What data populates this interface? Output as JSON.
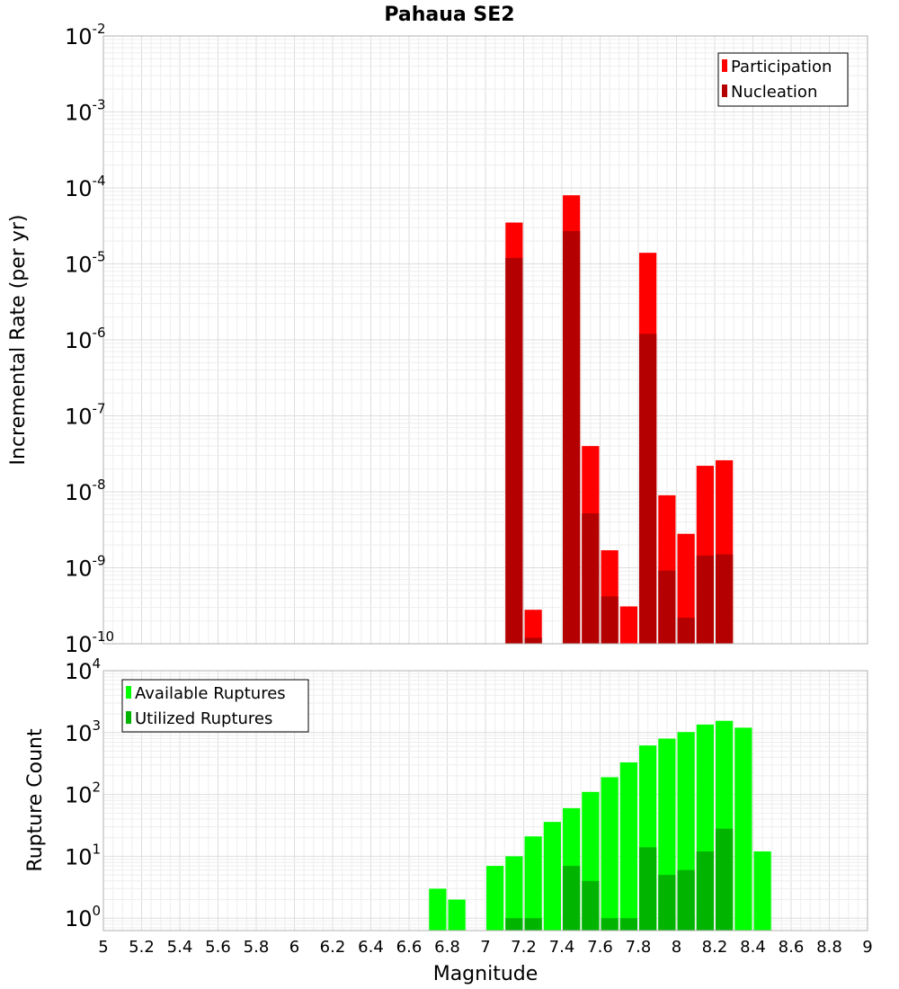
{
  "chart_data": [
    {
      "type": "bar",
      "title": "Pahaua SE2",
      "xlabel": "",
      "ylabel": "Incremental Rate (per yr)",
      "yscale": "log",
      "ylim_exp": [
        -10,
        -2
      ],
      "xlim": [
        5,
        9
      ],
      "legend_position": "top-right",
      "legend": [
        "Participation",
        "Nucleation"
      ],
      "colors": {
        "Participation": "#ff0000",
        "Nucleation": "#b40000"
      },
      "x": [
        7.15,
        7.25,
        7.35,
        7.45,
        7.55,
        7.65,
        7.75,
        7.85,
        7.95,
        8.05,
        8.15,
        8.25
      ],
      "series": [
        {
          "name": "Participation",
          "values": [
            3.5e-05,
            2.8e-10,
            null,
            8e-05,
            4e-08,
            1.7e-09,
            3.1e-10,
            1.4e-05,
            9e-09,
            2.8e-09,
            2.2e-08,
            2.6e-08
          ]
        },
        {
          "name": "Nucleation",
          "values": [
            1.2e-05,
            1.2e-10,
            null,
            2.7e-05,
            5.2e-09,
            4.2e-10,
            null,
            1.2e-06,
            9.2e-10,
            2.2e-10,
            1.45e-09,
            1.5e-09
          ]
        }
      ]
    },
    {
      "type": "bar",
      "title": "",
      "xlabel": "Magnitude",
      "ylabel": "Rupture Count",
      "yscale": "log",
      "ylim_exp": [
        -0.2,
        4
      ],
      "xlim": [
        5,
        9
      ],
      "legend_position": "top-left",
      "legend": [
        "Available Ruptures",
        "Utilized Ruptures"
      ],
      "colors": {
        "Available Ruptures": "#00ff00",
        "Utilized Ruptures": "#00b400"
      },
      "x": [
        6.75,
        6.85,
        6.95,
        7.05,
        7.15,
        7.25,
        7.35,
        7.45,
        7.55,
        7.65,
        7.75,
        7.85,
        7.95,
        8.05,
        8.15,
        8.25,
        8.35,
        8.45
      ],
      "series": [
        {
          "name": "Available Ruptures",
          "values": [
            3,
            2,
            null,
            7,
            10,
            21,
            36,
            60,
            110,
            190,
            330,
            620,
            800,
            1020,
            1350,
            1550,
            1200,
            12
          ]
        },
        {
          "name": "Utilized Ruptures",
          "values": [
            null,
            null,
            null,
            null,
            1,
            1,
            null,
            7,
            4,
            1,
            1,
            14,
            5,
            6,
            12,
            28,
            null,
            null
          ]
        }
      ],
      "xticks": [
        "5",
        "5.2",
        "5.4",
        "5.6",
        "5.8",
        "6",
        "6.2",
        "6.4",
        "6.6",
        "6.8",
        "7",
        "7.2",
        "7.4",
        "7.6",
        "7.8",
        "8",
        "8.2",
        "8.4",
        "8.6",
        "8.8",
        "9"
      ]
    }
  ]
}
